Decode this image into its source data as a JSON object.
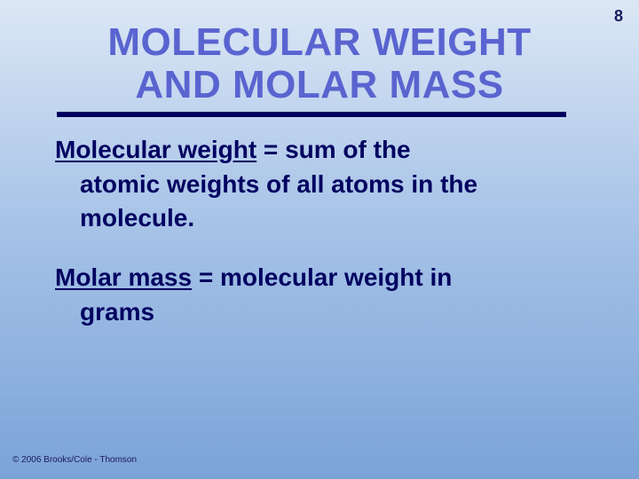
{
  "slide": {
    "page_number": "8",
    "title_line1": "MOLECULAR WEIGHT",
    "title_line2": "AND MOLAR MASS",
    "title_color": "#5a64d0",
    "title_fontsize": 44,
    "body_color": "#000060",
    "body_fontsize": 28,
    "underline_color": "#000060",
    "background_gradient": [
      "#dce7f5",
      "#a8c4e8",
      "#7ba3d8"
    ],
    "definitions": [
      {
        "term": "Molecular weight",
        "rest_first": " =  sum of the",
        "cont": "atomic weights of all atoms in the molecule."
      },
      {
        "term": "Molar mass",
        "rest_first": " = molecular weight in",
        "cont": "grams"
      }
    ],
    "copyright": "© 2006 Brooks/Cole - Thomson"
  }
}
